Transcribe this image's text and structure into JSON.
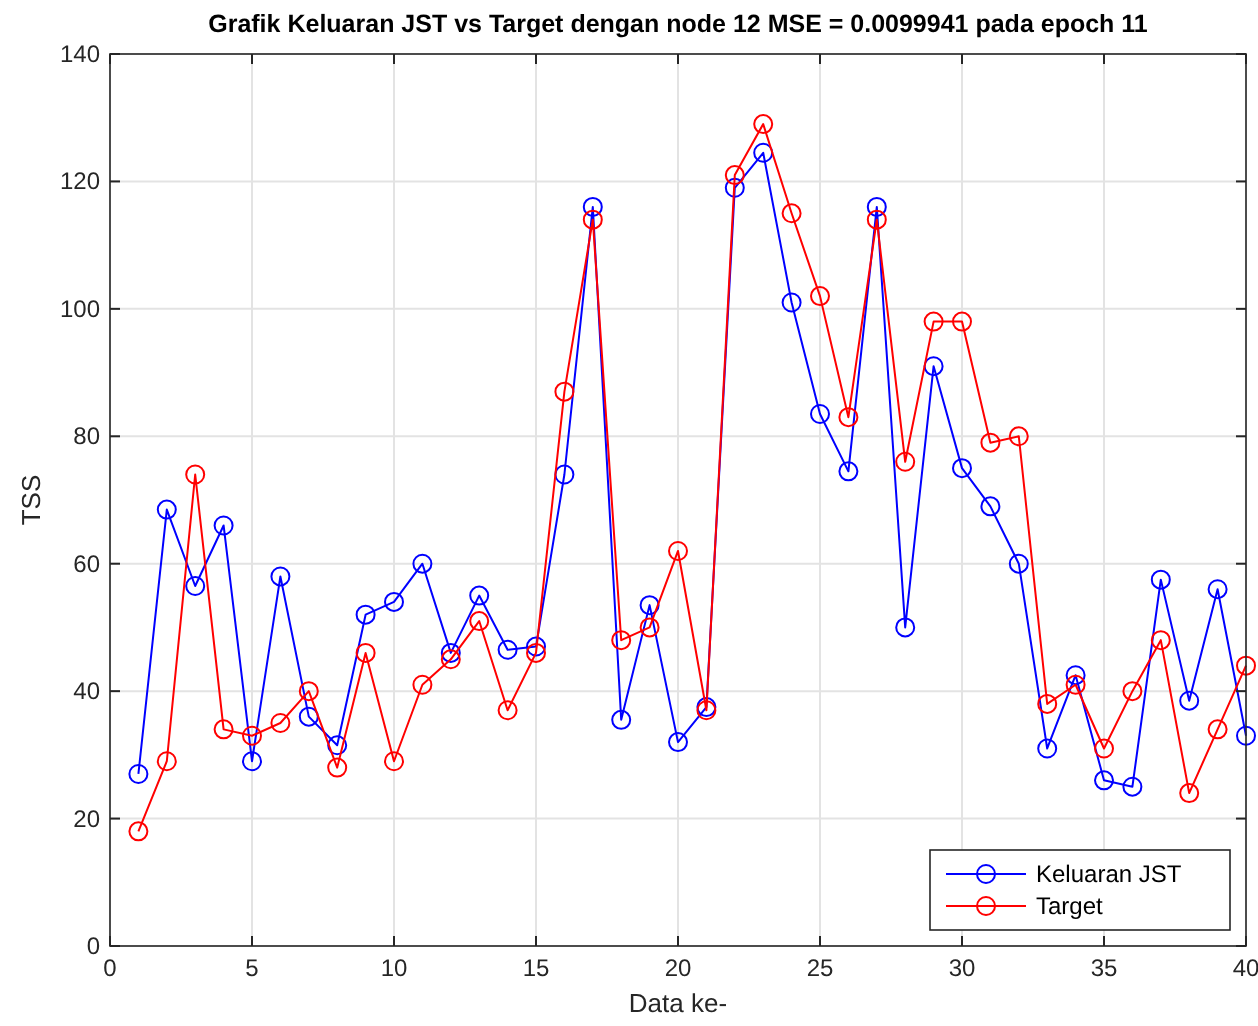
{
  "chart_data": {
    "type": "line",
    "title": "Grafik Keluaran JST vs Target dengan node 12 MSE = 0.0099941 pada epoch 11",
    "xlabel": "Data ke-",
    "ylabel": "TSS",
    "x": [
      1,
      2,
      3,
      4,
      5,
      6,
      7,
      8,
      9,
      10,
      11,
      12,
      13,
      14,
      15,
      16,
      17,
      18,
      19,
      20,
      21,
      22,
      23,
      24,
      25,
      26,
      27,
      28,
      29,
      30,
      31,
      32,
      33,
      34,
      35,
      36,
      37,
      38,
      39,
      40
    ],
    "series": [
      {
        "name": "Keluaran JST",
        "color": "#0000ff",
        "values": [
          27,
          68.5,
          56.5,
          66,
          29,
          58,
          36,
          31.5,
          52,
          54,
          60,
          46,
          55,
          46.5,
          47,
          74,
          116,
          35.5,
          53.5,
          32,
          37.5,
          119,
          124.5,
          101,
          83.5,
          74.5,
          116,
          50,
          91,
          75,
          69,
          60,
          31,
          42.5,
          26,
          25,
          57.5,
          38.5,
          56,
          33
        ]
      },
      {
        "name": "Target",
        "color": "#ff0000",
        "values": [
          18,
          29,
          74,
          34,
          33,
          35,
          40,
          28,
          46,
          29,
          41,
          45,
          51,
          37,
          46,
          87,
          114,
          48,
          50,
          62,
          37,
          121,
          129,
          115,
          102,
          83,
          114,
          76,
          98,
          98,
          79,
          80,
          38,
          41,
          31,
          40,
          48,
          24,
          34,
          44
        ]
      }
    ],
    "xlim": [
      0,
      40
    ],
    "xticks": [
      0,
      5,
      10,
      15,
      20,
      25,
      30,
      35,
      40
    ],
    "ylim": [
      0,
      140
    ],
    "yticks": [
      0,
      20,
      40,
      60,
      80,
      100,
      120,
      140
    ],
    "grid": true,
    "legend": "bottom right",
    "marker": "circle",
    "line_style": "solid"
  }
}
